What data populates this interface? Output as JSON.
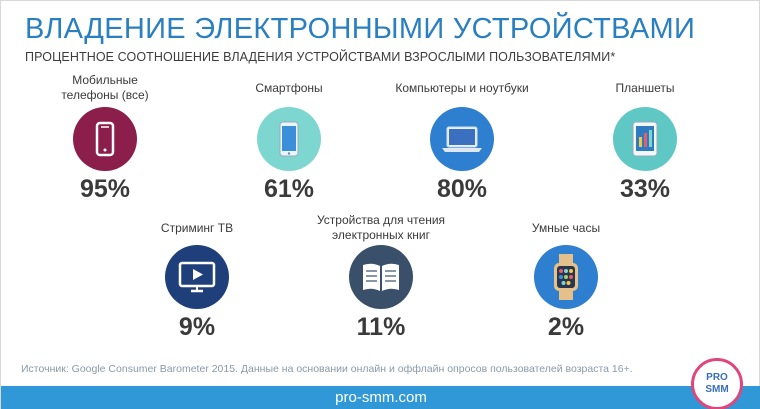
{
  "title": "ВЛАДЕНИЕ ЭЛЕКТРОННЫМИ УСТРОЙСТВАМИ",
  "subtitle": "ПРОЦЕНТНОЕ СООТНОШЕНИЕ ВЛАДЕНИЯ УСТРОЙСТВАМИ ВЗРОСЛЫМИ ПОЛЬЗОВАТЕЛЯМИ*",
  "chart_data": {
    "type": "table",
    "title": "ВЛАДЕНИЕ ЭЛЕКТРОННЫМИ УСТРОЙСТВАМИ",
    "subtitle": "ПРОЦЕНТНОЕ СООТНОШЕНИЕ ВЛАДЕНИЯ УСТРОЙСТВАМИ ВЗРОСЛЫМИ ПОЛЬЗОВАТЕЛЯМИ*",
    "unit": "%",
    "items": [
      {
        "label_lines": [
          "Мобильные",
          "телефоны (все)"
        ],
        "value": 95,
        "value_text": "95%",
        "icon": "mobile-phone-icon",
        "color": "#8b1e4a"
      },
      {
        "label_lines": [
          "Смартфоны"
        ],
        "value": 61,
        "value_text": "61%",
        "icon": "smartphone-icon",
        "color": "#7ed6d0"
      },
      {
        "label_lines": [
          "Компьютеры и ноутбуки"
        ],
        "value": 80,
        "value_text": "80%",
        "icon": "laptop-icon",
        "color": "#2f7fd0"
      },
      {
        "label_lines": [
          "Планшеты"
        ],
        "value": 33,
        "value_text": "33%",
        "icon": "tablet-icon",
        "color": "#5fc7c4"
      },
      {
        "label_lines": [
          "Стриминг ТВ"
        ],
        "value": 9,
        "value_text": "9%",
        "icon": "streaming-tv-icon",
        "color": "#1f3f7a"
      },
      {
        "label_lines": [
          "Устройства для чтения",
          "электронных книг"
        ],
        "value": 11,
        "value_text": "11%",
        "icon": "ebook-reader-icon",
        "color": "#3a4f6a"
      },
      {
        "label_lines": [
          "Умные часы"
        ],
        "value": 2,
        "value_text": "2%",
        "icon": "smartwatch-icon",
        "color": "#2f7fd0"
      }
    ]
  },
  "source": "Источник: Google Consumer Barometer 2015. Данные на основании онлайн и оффлайн опросов пользователей возраста 16+.",
  "footer": "pro-smm.com",
  "logo": {
    "line1": "PRO",
    "line2": "SMM"
  },
  "colors": {
    "accent": "#2a7fc1",
    "footer_bar": "#3198d8",
    "logo_ring": "#e0457b"
  }
}
